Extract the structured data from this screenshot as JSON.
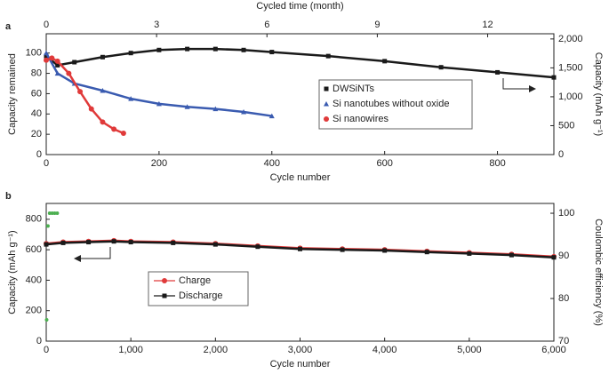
{
  "chart_data": [
    {
      "type": "line",
      "panel": "a",
      "xlabel": "Cycle number",
      "ylabel": "Capacity remained",
      "y2label": "Capacity (mAh g⁻¹)",
      "x2label": "Cycled time (month)",
      "xlim": [
        0,
        900
      ],
      "xticks": [
        0,
        200,
        400,
        600,
        800
      ],
      "x2lim": [
        0,
        13.8
      ],
      "x2ticks": [
        0,
        3,
        6,
        9,
        12
      ],
      "ylim": [
        0,
        119
      ],
      "yticks": [
        0,
        20,
        40,
        60,
        80,
        100
      ],
      "y2lim": [
        0,
        2090
      ],
      "y2ticks": [
        0,
        500,
        {
          "value": 1000,
          "label": "1,000"
        },
        {
          "value": 1500,
          "label": "1,500"
        },
        {
          "value": 2000,
          "label": "2,000"
        }
      ],
      "legend": "center right",
      "series": [
        {
          "name": "DWSiNTs",
          "color": "#1a1a1a",
          "marker": "square",
          "x": [
            0,
            20,
            50,
            100,
            150,
            200,
            250,
            300,
            350,
            400,
            500,
            600,
            700,
            800,
            900
          ],
          "values": [
            97,
            88,
            91,
            96,
            100,
            103,
            104,
            104,
            103,
            101,
            97,
            92,
            86,
            81,
            76
          ]
        },
        {
          "name": "Si nanotubes without oxide",
          "color": "#3a5bb0",
          "marker": "triangle",
          "x": [
            0,
            20,
            50,
            100,
            150,
            200,
            250,
            300,
            350,
            400
          ],
          "values": [
            100,
            80,
            70,
            63,
            55,
            50,
            47,
            45,
            42,
            38
          ]
        },
        {
          "name": "Si nanowires",
          "color": "#e03a3a",
          "marker": "circle",
          "x": [
            0,
            10,
            20,
            40,
            60,
            80,
            100,
            120,
            137
          ],
          "values": [
            93,
            95,
            92,
            80,
            62,
            45,
            32,
            25,
            21
          ]
        }
      ]
    },
    {
      "type": "line",
      "panel": "b",
      "xlabel": "Cycle number",
      "ylabel": "Capacity (mAh g⁻¹)",
      "y2label": "Coulombic efficiency (%)",
      "xlim": [
        0,
        6000
      ],
      "xticks": [
        0,
        {
          "value": 1000,
          "label": "1,000"
        },
        {
          "value": 2000,
          "label": "2,000"
        },
        {
          "value": 3000,
          "label": "3,000"
        },
        {
          "value": 4000,
          "label": "4,000"
        },
        {
          "value": 5000,
          "label": "5,000"
        },
        {
          "value": 6000,
          "label": "6,000"
        }
      ],
      "ylim": [
        0,
        904
      ],
      "yticks": [
        0,
        200,
        400,
        600,
        800
      ],
      "y2lim": [
        70,
        102.3
      ],
      "y2ticks": [
        70,
        80,
        90,
        100
      ],
      "legend": "lower left",
      "series": [
        {
          "name": "Charge",
          "color": "#e03a3a",
          "marker": "circle",
          "x": [
            0,
            200,
            500,
            800,
            1000,
            1500,
            2000,
            2500,
            3000,
            3500,
            4000,
            4500,
            5000,
            5500,
            6000
          ],
          "values": [
            640,
            650,
            655,
            660,
            655,
            650,
            640,
            625,
            610,
            605,
            600,
            590,
            580,
            570,
            555
          ]
        },
        {
          "name": "Discharge",
          "color": "#1a1a1a",
          "marker": "square",
          "x": [
            0,
            200,
            500,
            800,
            1000,
            1500,
            2000,
            2500,
            3000,
            3500,
            4000,
            4500,
            5000,
            5500,
            6000
          ],
          "values": [
            635,
            645,
            650,
            655,
            650,
            645,
            635,
            620,
            605,
            600,
            595,
            585,
            575,
            565,
            550
          ]
        },
        {
          "color": "#4caf50",
          "marker": "dot",
          "axis": "y2",
          "x": [
            5,
            20,
            40,
            70,
            100,
            130
          ],
          "values": [
            75,
            97,
            100,
            100,
            100,
            100
          ]
        }
      ]
    }
  ]
}
